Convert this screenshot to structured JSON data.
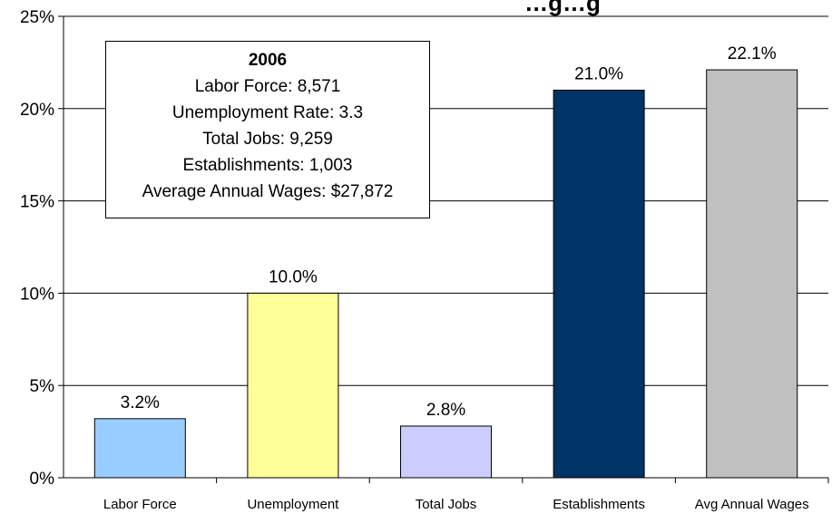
{
  "chart_data": {
    "type": "bar",
    "title": "…g…g",
    "categories": [
      "Labor Force",
      "Unemployment",
      "Total Jobs",
      "Establishments",
      "Avg Annual Wages"
    ],
    "values": [
      3.2,
      10.0,
      2.8,
      21.0,
      22.1
    ],
    "data_labels": [
      "3.2%",
      "10.0%",
      "2.8%",
      "21.0%",
      "22.1%"
    ],
    "bar_colors": [
      "#99ccff",
      "#ffff99",
      "#ccccff",
      "#003366",
      "#c0c0c0"
    ],
    "ylim": [
      0,
      25
    ],
    "y_ticks": [
      0,
      5,
      10,
      15,
      20,
      25
    ],
    "y_tick_labels": [
      "0%",
      "5%",
      "10%",
      "15%",
      "20%",
      "25%"
    ],
    "grid": true,
    "xlabel": "",
    "ylabel": ""
  },
  "info_box": {
    "year": "2006",
    "lines": [
      "Labor Force: 8,571",
      "Unemployment Rate: 3.3",
      "Total Jobs: 9,259",
      "Establishments: 1,003",
      "Average Annual Wages: $27,872"
    ]
  }
}
